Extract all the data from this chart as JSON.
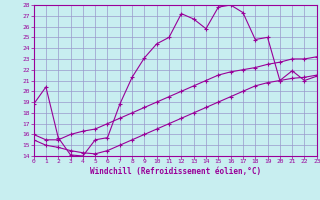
{
  "xlabel": "Windchill (Refroidissement éolien,°C)",
  "bg_color": "#c8eef0",
  "line_color": "#990099",
  "grid_color": "#9999cc",
  "xmin": 0,
  "xmax": 23,
  "ymin": 14,
  "ymax": 28,
  "line1_x": [
    0,
    1,
    2,
    3,
    4,
    5,
    6,
    7,
    8,
    9,
    10,
    11,
    12,
    13,
    14,
    15,
    16,
    17,
    18,
    19,
    20,
    21,
    22,
    23
  ],
  "line1_y": [
    18.8,
    20.4,
    15.7,
    14.1,
    14.0,
    15.5,
    15.7,
    18.8,
    21.3,
    23.1,
    24.4,
    25.0,
    27.2,
    26.7,
    25.8,
    27.8,
    28.0,
    27.3,
    24.8,
    25.0,
    21.0,
    21.9,
    21.0,
    21.4
  ],
  "line2_x": [
    0,
    1,
    2,
    3,
    4,
    5,
    6,
    7,
    8,
    9,
    10,
    11,
    12,
    13,
    14,
    15,
    16,
    17,
    18,
    19,
    20,
    21,
    22,
    23
  ],
  "line2_y": [
    16.0,
    15.5,
    15.5,
    16.0,
    16.3,
    16.5,
    17.0,
    17.5,
    18.0,
    18.5,
    19.0,
    19.5,
    20.0,
    20.5,
    21.0,
    21.5,
    21.8,
    22.0,
    22.2,
    22.5,
    22.7,
    23.0,
    23.0,
    23.2
  ],
  "line3_x": [
    0,
    1,
    2,
    3,
    4,
    5,
    6,
    7,
    8,
    9,
    10,
    11,
    12,
    13,
    14,
    15,
    16,
    17,
    18,
    19,
    20,
    21,
    22,
    23
  ],
  "line3_y": [
    15.5,
    15.0,
    14.8,
    14.5,
    14.3,
    14.2,
    14.5,
    15.0,
    15.5,
    16.0,
    16.5,
    17.0,
    17.5,
    18.0,
    18.5,
    19.0,
    19.5,
    20.0,
    20.5,
    20.8,
    21.0,
    21.2,
    21.3,
    21.5
  ]
}
